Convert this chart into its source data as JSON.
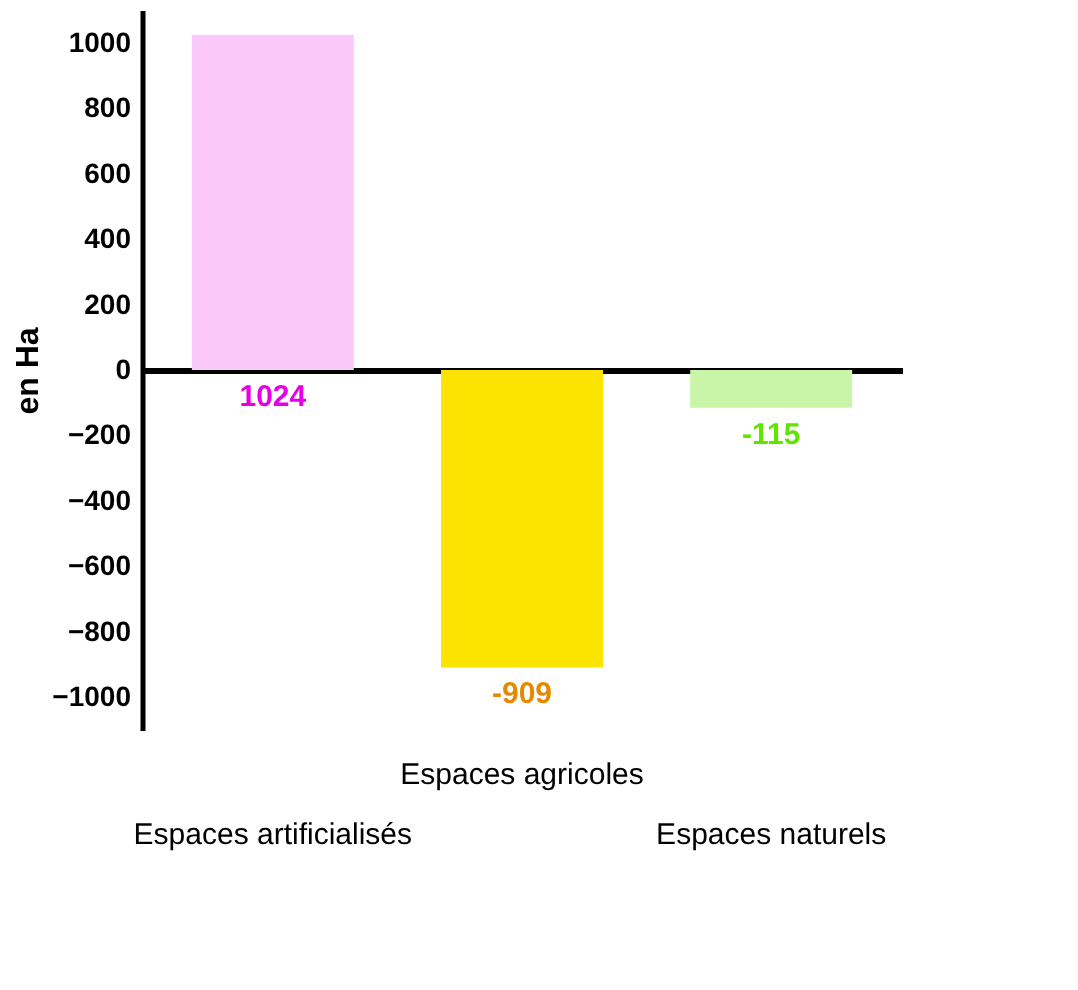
{
  "chart_data": {
    "type": "bar",
    "ylabel": "en Ha",
    "categories": [
      "Espaces artificialisés",
      "Espaces agricoles",
      "Espaces naturels"
    ],
    "values": [
      1024,
      -909,
      -115
    ],
    "colors": [
      "#fbc8fb",
      "#fde400",
      "#c8f5a8"
    ],
    "data_labels": true,
    "ylim": [
      -1100,
      1100
    ],
    "yticks": [
      -1000,
      -800,
      -600,
      -400,
      -200,
      0,
      200,
      400,
      600,
      800,
      1000
    ]
  }
}
